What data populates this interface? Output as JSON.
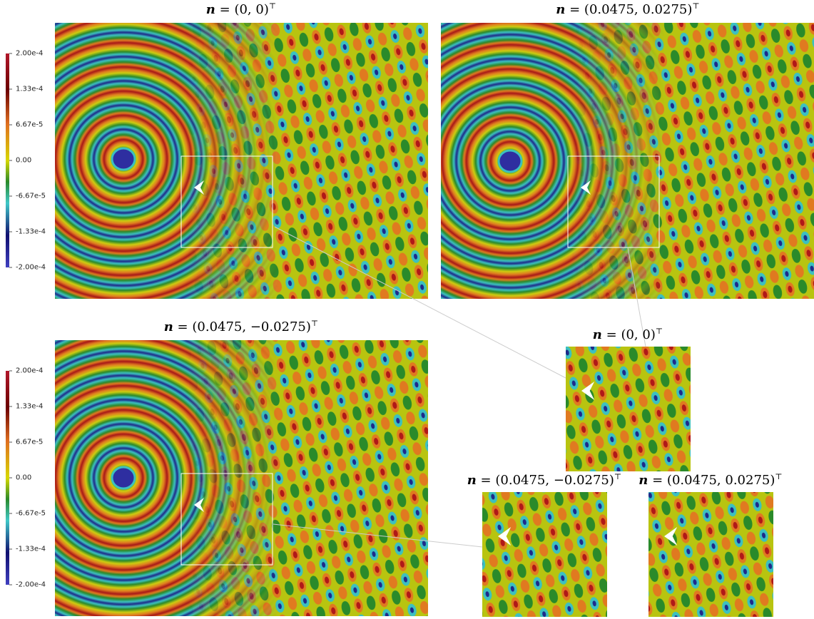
{
  "panels": [
    {
      "symbol": "n",
      "eq": "=",
      "value": "(0, 0)",
      "sup": "⊤"
    },
    {
      "symbol": "n",
      "eq": "=",
      "value": "(0.0475, 0.0275)",
      "sup": "⊤"
    },
    {
      "symbol": "n",
      "eq": "=",
      "value": "(0.0475, −0.0275)",
      "sup": "⊤"
    }
  ],
  "zooms": [
    {
      "symbol": "n",
      "eq": "=",
      "value": "(0, 0)",
      "sup": "⊤"
    },
    {
      "symbol": "n",
      "eq": "=",
      "value": "(0.0475, −0.0275)",
      "sup": "⊤"
    },
    {
      "symbol": "n",
      "eq": "=",
      "value": "(0.0475, 0.0275)",
      "sup": "⊤"
    }
  ],
  "colorbars": [
    {
      "labels": [
        "2.00e-4",
        "1.33e-4",
        "6.67e-5",
        "0.00",
        "-6.67e-5",
        "-1.33e-4",
        "-2.00e-4"
      ]
    },
    {
      "labels": [
        "2.00e-4",
        "1.33e-4",
        "6.67e-5",
        "0.00",
        "-6.67e-5",
        "-1.33e-4",
        "-2.00e-4"
      ]
    }
  ]
}
